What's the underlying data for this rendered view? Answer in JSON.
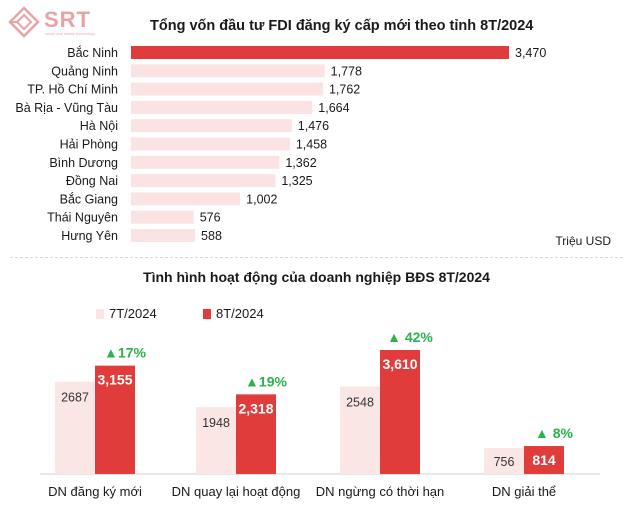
{
  "header": {
    "logo_text": "SRT",
    "logo_tagline": "smart real estate technology"
  },
  "chart_data": [
    {
      "type": "bar",
      "orientation": "horizontal",
      "title": "Tổng vốn đầu tư FDI đăng ký cấp mới theo tỉnh 8T/2024",
      "unit_label": "Triệu USD",
      "categories": [
        "Bắc Ninh",
        "Quảng Ninh",
        "TP. Hồ Chí Minh",
        "Bà Rịa - Vũng Tàu",
        "Hà Nội",
        "Hải Phòng",
        "Bình Dương",
        "Đồng Nai",
        "Bắc Giang",
        "Thái Nguyên",
        "Hưng Yên"
      ],
      "values": [
        3470,
        1778,
        1762,
        1664,
        1476,
        1458,
        1362,
        1325,
        1002,
        576,
        588
      ],
      "value_labels": [
        "3,470",
        "1,778",
        "1,762",
        "1,664",
        "1,476",
        "1,458",
        "1,362",
        "1,325",
        "1,002",
        "576",
        "588"
      ],
      "xlim": [
        0,
        3470
      ],
      "grid": false,
      "colors": {
        "highlight": "#e03c3c",
        "default": "#fbe3e3"
      }
    },
    {
      "type": "bar",
      "orientation": "vertical",
      "title": "Tình hình hoạt động của doanh nghiệp BĐS 8T/2024",
      "categories": [
        "DN đăng ký mới",
        "DN quay lại hoạt động",
        "DN ngừng có thời hạn",
        "DN giải thể"
      ],
      "series": [
        {
          "name": "7T/2024",
          "values": [
            2687,
            1948,
            2548,
            756
          ],
          "value_labels": [
            "2687",
            "1948",
            "2548",
            "756"
          ],
          "color": "#fbe6e6"
        },
        {
          "name": "8T/2024",
          "values": [
            3155,
            2318,
            3610,
            814
          ],
          "value_labels": [
            "3,155",
            "2,318",
            "3,610",
            "814"
          ],
          "color": "#e03c3c"
        }
      ],
      "growth_labels": [
        "▲17%",
        "▲19%",
        "▲ 42%",
        "▲ 8%"
      ],
      "growth_color": "#2bb24c",
      "ylim": [
        0,
        3610
      ],
      "grid": false,
      "legend_position": "top-left"
    }
  ]
}
